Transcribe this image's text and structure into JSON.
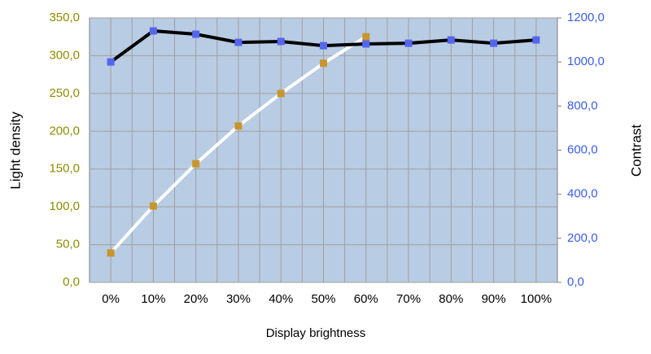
{
  "chart_data": {
    "type": "line",
    "x_label": "Display brightness",
    "y_label": "Light density",
    "y2_label": "Contrast",
    "categories": [
      "0%",
      "10%",
      "20%",
      "30%",
      "40%",
      "50%",
      "60%",
      "70%",
      "80%",
      "90%",
      "100%"
    ],
    "series": [
      {
        "color": "#c8962e",
        "line_color": "#ffffff",
        "values": [
          39,
          101,
          157,
          207,
          250,
          290,
          325,
          null,
          null,
          null,
          null
        ]
      },
      {
        "color": "#5566ee",
        "line_color": "#000000",
        "axis": "y2",
        "values": [
          1000,
          1141,
          1126,
          1089,
          1093,
          1074,
          1082,
          1085,
          1100,
          1085,
          1100
        ]
      }
    ],
    "ylim": [
      0,
      350
    ],
    "yticks": [
      {
        "value": 0,
        "label": "0,0"
      },
      {
        "value": 50,
        "label": "50,0"
      },
      {
        "value": 100,
        "label": "100,0"
      },
      {
        "value": 150,
        "label": "150,0"
      },
      {
        "value": 200,
        "label": "200,0"
      },
      {
        "value": 250,
        "label": "250,0"
      },
      {
        "value": 300,
        "label": "300,0"
      },
      {
        "value": 350,
        "label": "350,0"
      }
    ],
    "y2lim": [
      0,
      1200
    ],
    "y2ticks": [
      {
        "value": 0,
        "label": "0,0"
      },
      {
        "value": 200,
        "label": "200,0"
      },
      {
        "value": 400,
        "label": "400,0"
      },
      {
        "value": 600,
        "label": "600,0"
      },
      {
        "value": 800,
        "label": "800,0"
      },
      {
        "value": 1000,
        "label": "1000,0"
      },
      {
        "value": 1200,
        "label": "1200,0"
      }
    ],
    "grid": true,
    "plot_background": "#b8cce4"
  }
}
